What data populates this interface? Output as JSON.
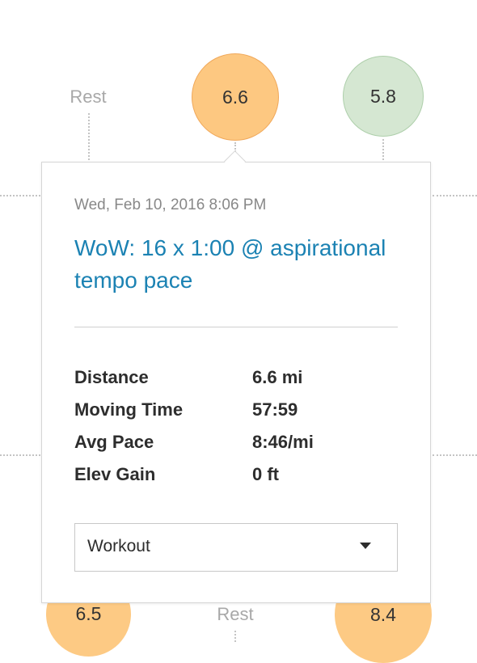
{
  "top_row": {
    "rest_label": "Rest",
    "bubble_selected": "6.6",
    "bubble_next": "5.8"
  },
  "bottom_row": {
    "bubble_left": "6.5",
    "rest_label": "Rest",
    "bubble_right": "8.4"
  },
  "popover": {
    "date": "Wed, Feb 10, 2016 8:06 PM",
    "title": "WoW: 16 x 1:00 @ aspirational tempo pace",
    "stats": [
      {
        "label": "Distance",
        "value": "6.6 mi"
      },
      {
        "label": "Moving Time",
        "value": "57:59"
      },
      {
        "label": "Avg Pace",
        "value": "8:46/mi"
      },
      {
        "label": "Elev Gain",
        "value": "0 ft"
      }
    ],
    "workout_type": {
      "selected": "Workout"
    }
  },
  "colors": {
    "selected_bubble": "#fdc881",
    "other_bubble": "#d5e7d2",
    "link": "#1b82b3"
  }
}
